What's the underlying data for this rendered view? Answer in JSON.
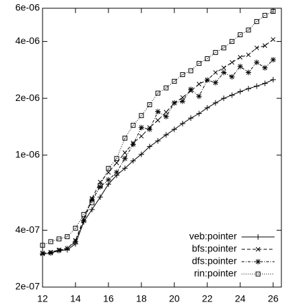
{
  "chart_data": {
    "type": "line",
    "x": [
      12,
      12.5,
      13,
      13.5,
      14,
      14.5,
      15,
      15.5,
      16,
      16.5,
      17,
      17.5,
      18,
      18.5,
      19,
      19.5,
      20,
      20.5,
      21,
      21.5,
      22,
      22.5,
      23,
      23.5,
      24,
      24.5,
      25,
      25.5,
      26
    ],
    "series": [
      {
        "name": "veb:pointer",
        "color": "#000000",
        "style": "solid",
        "marker": "plus",
        "values": [
          2.99e-07,
          3.03e-07,
          3.12e-07,
          3.15e-07,
          3.39e-07,
          4.43e-07,
          5.15e-07,
          5.99e-07,
          7.02e-07,
          7.83e-07,
          8.51e-07,
          9.33e-07,
          1.01e-06,
          1.11e-06,
          1.19e-06,
          1.28e-06,
          1.37e-06,
          1.47e-06,
          1.57e-06,
          1.66e-06,
          1.78e-06,
          1.89e-06,
          2e-06,
          2.08e-06,
          2.17e-06,
          2.25e-06,
          2.32e-06,
          2.4e-06,
          2.51e-06
        ]
      },
      {
        "name": "bfs:pointer",
        "color": "#000000",
        "style": "dashed",
        "marker": "cross",
        "values": [
          3.03e-07,
          3.06e-07,
          3.15e-07,
          3.2e-07,
          3.54e-07,
          4.6e-07,
          5.9e-07,
          7.2e-07,
          8.1e-07,
          9.1e-07,
          1.03e-06,
          1.16e-06,
          1.26e-06,
          1.4e-06,
          1.53e-06,
          1.69e-06,
          1.89e-06,
          2.02e-06,
          2.19e-06,
          2.38e-06,
          2.5e-06,
          2.74e-06,
          2.9e-06,
          3.1e-06,
          3.3e-06,
          3.4e-06,
          3.7e-06,
          3.8e-06,
          4.1e-06
        ]
      },
      {
        "name": "dfs:pointer",
        "color": "#000000",
        "style": "dashdot",
        "marker": "star",
        "values": [
          3e-07,
          3.03e-07,
          3.12e-07,
          3.2e-07,
          3.48e-07,
          4.5e-07,
          5.8e-07,
          6.8e-07,
          7.4e-07,
          8.1e-07,
          9.6e-07,
          1.14e-06,
          1.4e-06,
          1.37e-06,
          1.7e-06,
          1.6e-06,
          1.89e-06,
          1.93e-06,
          2.23e-06,
          2.05e-06,
          2.5e-06,
          2.42e-06,
          2.74e-06,
          2.6e-06,
          2.95e-06,
          2.74e-06,
          3.1e-06,
          2.9e-06,
          3.2e-06
        ]
      },
      {
        "name": "rin:pointer",
        "color": "#000000",
        "style": "dotted",
        "marker": "box",
        "values": [
          3.33e-07,
          3.48e-07,
          3.6e-07,
          3.7e-07,
          4.1e-07,
          4.85e-07,
          5.6e-07,
          6.9e-07,
          8.5e-07,
          9.6e-07,
          1.23e-06,
          1.44e-06,
          1.62e-06,
          1.85e-06,
          2.13e-06,
          2.27e-06,
          2.46e-06,
          2.67e-06,
          2.8e-06,
          3.06e-06,
          3.24e-06,
          3.5e-06,
          3.7e-06,
          4e-06,
          4.34e-06,
          4.6e-06,
          5.1e-06,
          5.5e-06,
          5.78e-06
        ]
      }
    ],
    "xlim": [
      12,
      26.5
    ],
    "xticks": [
      12,
      14,
      16,
      18,
      20,
      22,
      24,
      26
    ],
    "ylim": [
      2e-07,
      6e-06
    ],
    "log_y": true,
    "yticks": [
      {
        "value": 2e-07,
        "label": "2e-07"
      },
      {
        "value": 4e-07,
        "label": "4e-07"
      },
      {
        "value": 1e-06,
        "label": "1e-06"
      },
      {
        "value": 2e-06,
        "label": "2e-06"
      },
      {
        "value": 4e-06,
        "label": "4e-06"
      },
      {
        "value": 6e-06,
        "label": "6e-06"
      }
    ],
    "grid": false,
    "legend": "lower right"
  }
}
